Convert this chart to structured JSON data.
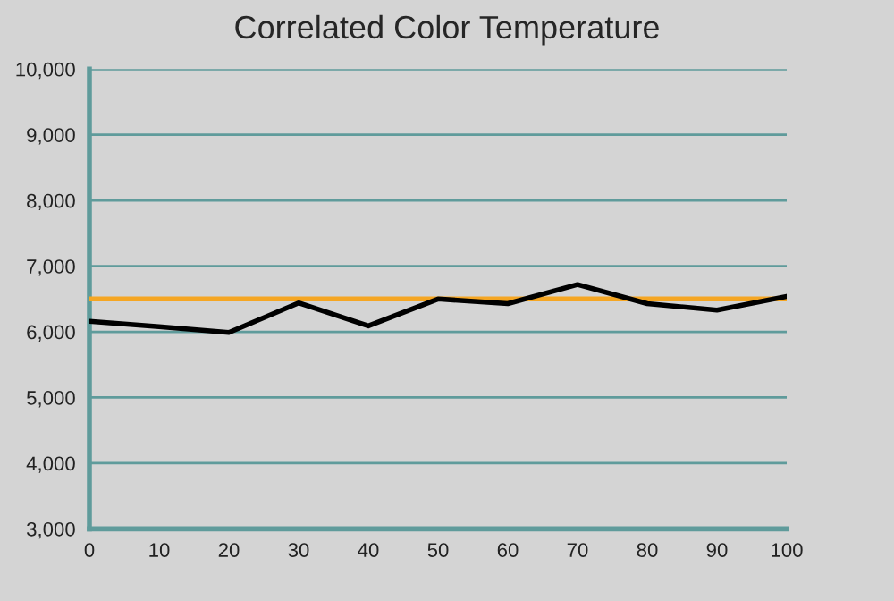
{
  "chart_data": {
    "type": "line",
    "title": "Correlated Color Temperature",
    "x": [
      0,
      10,
      20,
      30,
      40,
      50,
      60,
      70,
      80,
      90,
      100
    ],
    "series": [
      {
        "color": "#000000",
        "values": [
          6160,
          6080,
          5990,
          6440,
          6090,
          6500,
          6430,
          6720,
          6430,
          6330,
          6540
        ]
      }
    ],
    "ref_lines": [
      {
        "axis": "y",
        "value": 6500,
        "label": null,
        "color": "#f5a623"
      }
    ],
    "xlim": [
      0,
      100
    ],
    "xticks": [
      0,
      10,
      20,
      30,
      40,
      50,
      60,
      70,
      80,
      90,
      100
    ],
    "ylim": [
      3000,
      10000
    ],
    "yticks": [
      {
        "value": 3000,
        "label": "3,000"
      },
      {
        "value": 4000,
        "label": "4,000"
      },
      {
        "value": 5000,
        "label": "5,000"
      },
      {
        "value": 6000,
        "label": "6,000"
      },
      {
        "value": 7000,
        "label": "7,000"
      },
      {
        "value": 8000,
        "label": "8,000"
      },
      {
        "value": 9000,
        "label": "9,000"
      },
      {
        "value": 10000,
        "label": "10,000"
      }
    ],
    "grid": "y",
    "legend": false
  }
}
